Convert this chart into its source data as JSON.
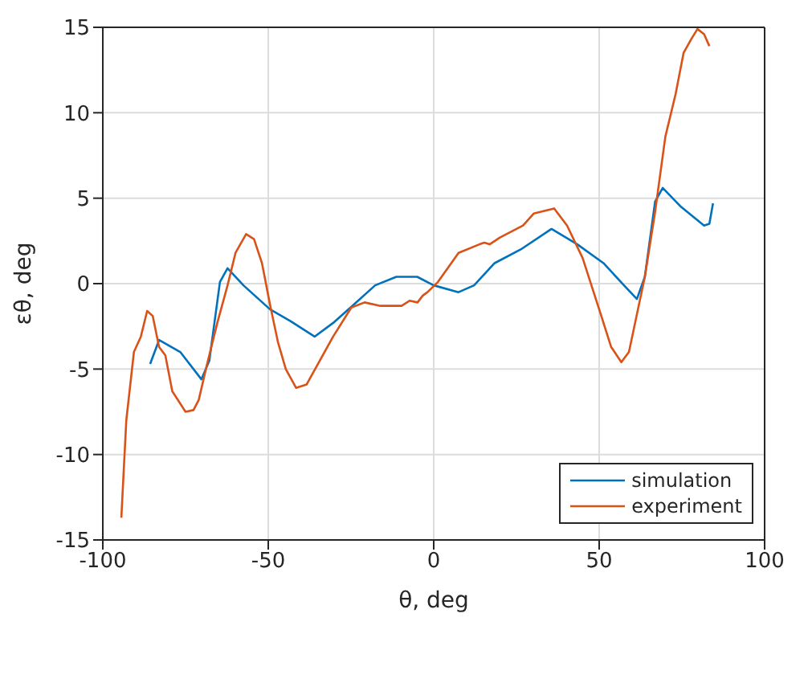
{
  "chart_data": {
    "type": "line",
    "xlabel": "θ, deg",
    "ylabel": "εθ, deg",
    "xlim": [
      -100,
      100
    ],
    "xticks": [
      -100,
      -50,
      0,
      50,
      100
    ],
    "ylim": [
      -15,
      15
    ],
    "yticks": [
      -15,
      -10,
      -5,
      0,
      5,
      10,
      15
    ],
    "grid": true,
    "legend": "bottom right",
    "line_style": "solid",
    "marker": "none",
    "series": [
      {
        "name": "simulation",
        "color": "#0072bd",
        "x": [
          -85.7,
          -83,
          -76.6,
          -70.2,
          -67.8,
          -64.6,
          -62.3,
          -57.5,
          -49.5,
          -43.2,
          -36,
          -30.4,
          -24,
          -17.7,
          -11.3,
          -5,
          0,
          7.5,
          12.2,
          18.4,
          26.3,
          35.6,
          43.4,
          51.3,
          57.5,
          61.4,
          63.8,
          66.9,
          69.2,
          74.7,
          81.7,
          83.3,
          84.4
        ],
        "values": [
          -4.7,
          -3.3,
          -4.0,
          -5.6,
          -4.5,
          0.1,
          0.9,
          -0.1,
          -1.5,
          -2.2,
          -3.1,
          -2.3,
          -1.2,
          -0.1,
          0.4,
          0.4,
          -0.1,
          -0.5,
          -0.1,
          1.2,
          2.0,
          3.2,
          2.3,
          1.2,
          -0.1,
          -0.9,
          0.4,
          4.8,
          5.6,
          4.5,
          3.4,
          3.5,
          4.7
        ]
      },
      {
        "name": "experiment",
        "color": "#d95319",
        "x": [
          -94.4,
          -92.9,
          -90.6,
          -88.5,
          -86.6,
          -84.9,
          -83,
          -81.1,
          -79,
          -75,
          -72.6,
          -71,
          -68.6,
          -65.4,
          -62.3,
          -59.9,
          -56.7,
          -54.3,
          -51.9,
          -49.5,
          -47.1,
          -44.7,
          -41.6,
          -38.4,
          -34.4,
          -30.4,
          -24.9,
          -20.9,
          -16.1,
          -9.7,
          -7.3,
          -4.9,
          -3.3,
          -1.9,
          1.3,
          7.5,
          13.8,
          15.3,
          16.9,
          20,
          27,
          30.2,
          36.4,
          40.3,
          45,
          50.5,
          53.6,
          56.7,
          59,
          63.8,
          66.9,
          70,
          73.1,
          75.5,
          77.8,
          79.7,
          81.7,
          83.3
        ],
        "values": [
          -13.7,
          -8.0,
          -4.0,
          -3.1,
          -1.6,
          -1.9,
          -3.7,
          -4.2,
          -6.3,
          -7.5,
          -7.4,
          -6.8,
          -4.8,
          -2.3,
          -0.1,
          1.8,
          2.9,
          2.6,
          1.2,
          -1.2,
          -3.4,
          -5.0,
          -6.1,
          -5.9,
          -4.5,
          -3.1,
          -1.4,
          -1.1,
          -1.3,
          -1.3,
          -1.0,
          -1.1,
          -0.7,
          -0.5,
          0.1,
          1.8,
          2.3,
          2.4,
          2.3,
          2.7,
          3.4,
          4.1,
          4.4,
          3.4,
          1.5,
          -1.8,
          -3.7,
          -4.6,
          -4.0,
          0.4,
          4.2,
          8.6,
          11.1,
          13.5,
          14.3,
          14.9,
          14.6,
          13.9
        ]
      }
    ]
  }
}
